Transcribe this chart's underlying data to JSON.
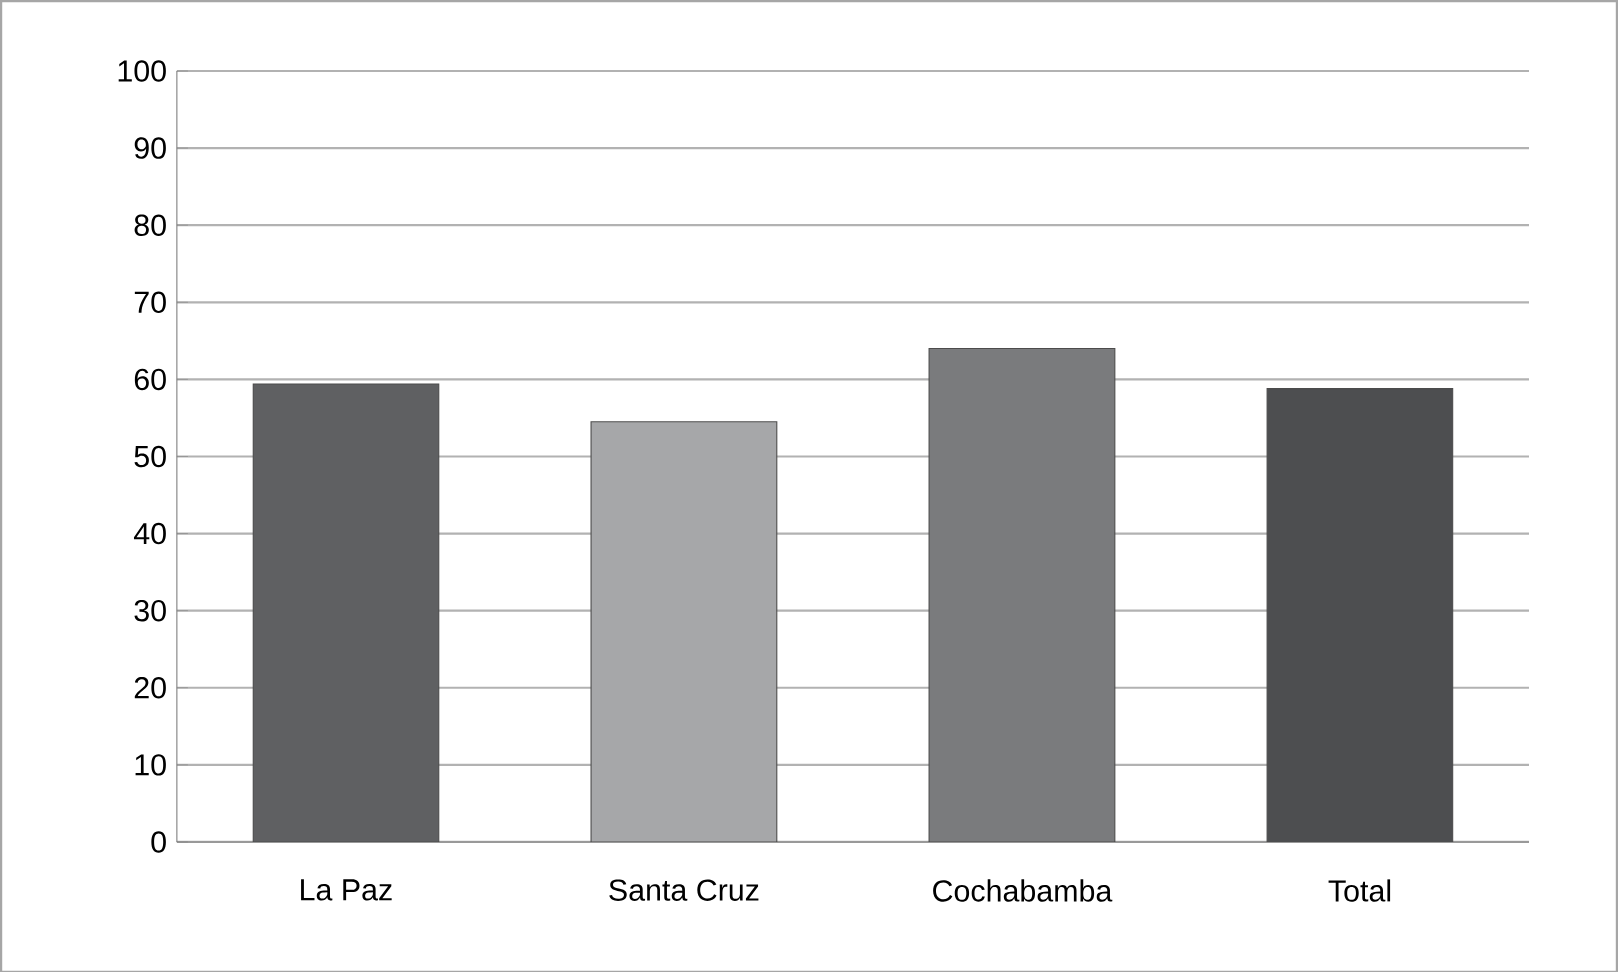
{
  "chart_data": {
    "type": "bar",
    "categories": [
      "La Paz",
      "Santa Cruz",
      "Cochabamba",
      "Total"
    ],
    "values": [
      59.4,
      54.5,
      64.0,
      58.8
    ],
    "colors": [
      "#5f6062",
      "#a6a7a9",
      "#7a7b7d",
      "#4d4e50"
    ],
    "ylim": [
      0,
      100
    ],
    "yticks": [
      0,
      10,
      20,
      30,
      40,
      50,
      60,
      70,
      80,
      90,
      100
    ],
    "grid": "y"
  }
}
